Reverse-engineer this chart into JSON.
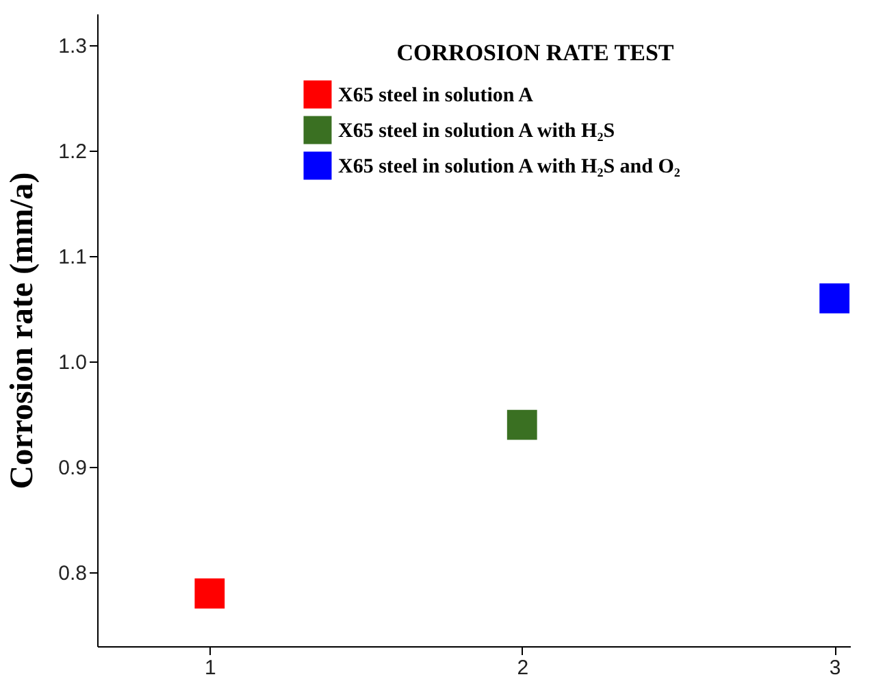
{
  "chart_data": {
    "type": "scatter",
    "title": "CORROSION RATE TEST",
    "ylabel": "Corrosion rate  (mm/a)",
    "xlim": [
      0.64,
      3.05
    ],
    "xticks": [
      1,
      2,
      3
    ],
    "ylim": [
      0.73,
      1.33
    ],
    "yticks": [
      0.8,
      0.9,
      {
        "value": 1,
        "label": "1.0"
      },
      1.1,
      1.2,
      1.3
    ],
    "marker": "square",
    "grid": false,
    "legend": "top",
    "series": [
      {
        "name": "X65  steel in solution A",
        "color": "#ff0000",
        "x": [
          1
        ],
        "values": [
          0.78
        ]
      },
      {
        "name": "X65  steel in solution A with H₂S",
        "color": "#3a7022",
        "x": [
          2
        ],
        "values": [
          0.94
        ]
      },
      {
        "name": "X65  steel in solution A with H₂S and O₂",
        "color": "#0000ff",
        "x": [
          3
        ],
        "values": [
          1.06
        ]
      }
    ]
  }
}
